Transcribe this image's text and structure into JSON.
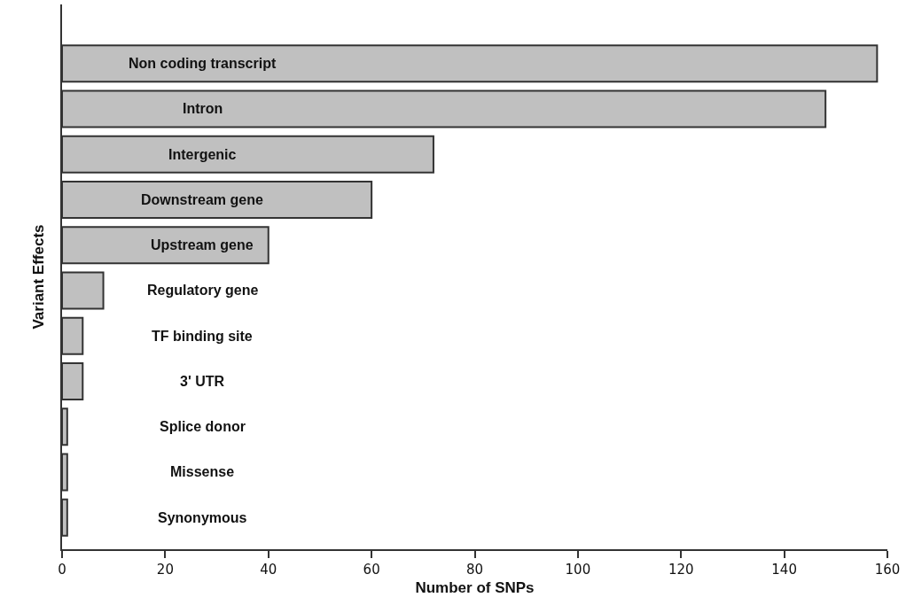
{
  "chart_data": {
    "type": "bar",
    "orientation": "horizontal",
    "xlabel": "Number of SNPs",
    "ylabel": "Variant Effects",
    "categories": [
      "Non coding transcript",
      "Intron",
      "Intergenic",
      "Downstream gene",
      "Upstream gene",
      "Regulatory gene",
      "TF binding site",
      "3' UTR",
      "Splice donor",
      "Missense",
      "Synonymous"
    ],
    "values": [
      158,
      148,
      72,
      60,
      40,
      8,
      4,
      4,
      1,
      1,
      1
    ],
    "color": "#c0c0c0",
    "xlim": [
      0,
      160
    ],
    "xticks": [
      0,
      20,
      40,
      60,
      80,
      100,
      120,
      140,
      160
    ],
    "tick_labels": "x",
    "grid": false
  }
}
